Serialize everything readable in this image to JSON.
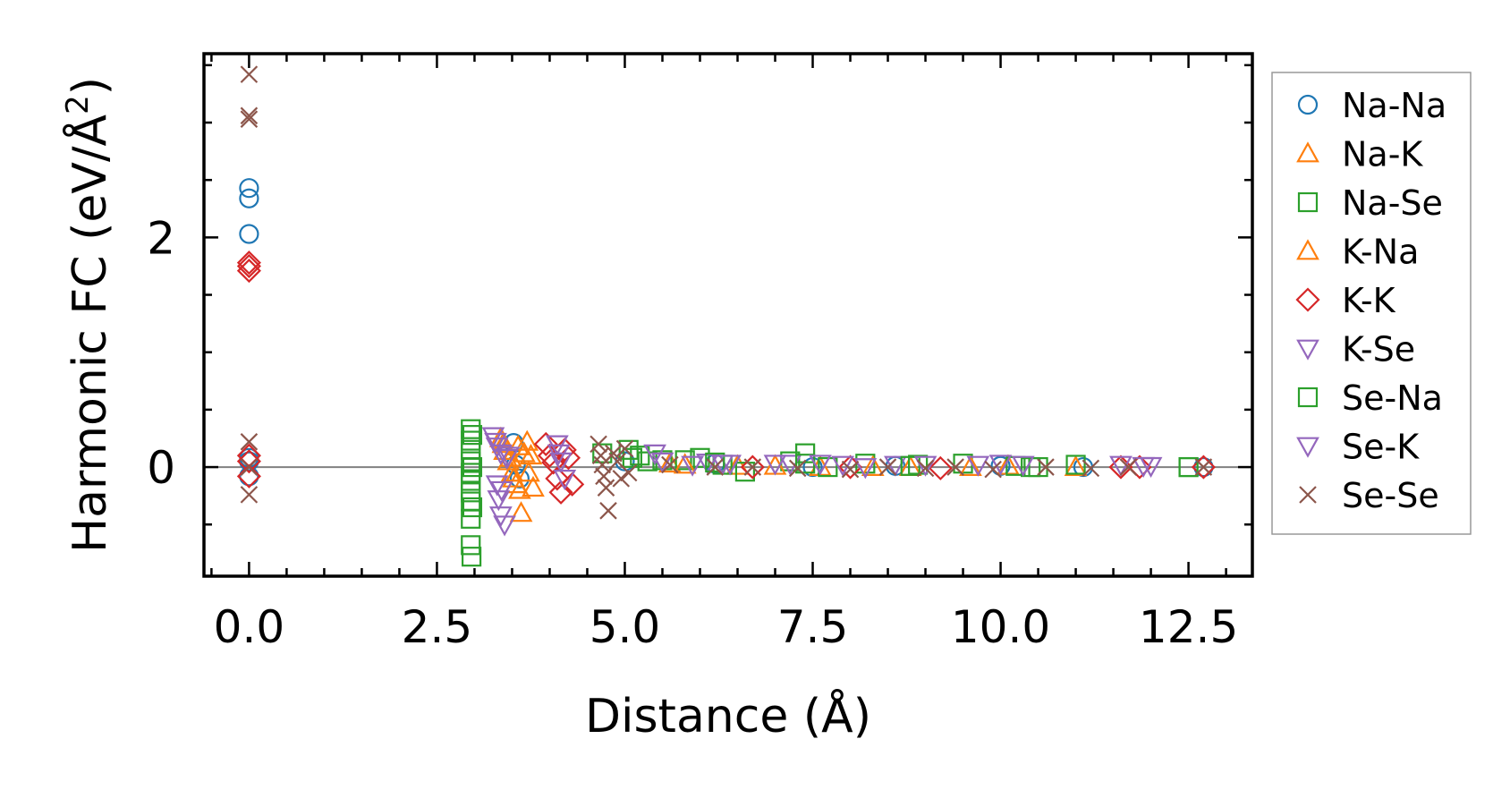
{
  "chart_data": {
    "type": "scatter",
    "xlabel": "Distance (Å)",
    "ylabel_main": "Harmonic FC (eV/Å",
    "ylabel_sup": "2",
    "ylabel_close": ")",
    "xlim": [
      -0.6,
      13.35
    ],
    "ylim": [
      -0.95,
      3.6
    ],
    "x_ticks": [
      0.0,
      2.5,
      5.0,
      7.5,
      10.0,
      12.5
    ],
    "x_tick_labels": [
      "0.0",
      "2.5",
      "5.0",
      "7.5",
      "10.0",
      "12.5"
    ],
    "y_ticks": [
      0,
      2
    ],
    "y_tick_labels": [
      "0",
      "2"
    ],
    "zero_line": true,
    "grid": false,
    "legend_position": "outside-right",
    "series": [
      {
        "name": "Na-Na",
        "marker": "circle",
        "color": "#1f77b4",
        "points": [
          [
            0,
            2.43
          ],
          [
            0,
            2.34
          ],
          [
            0,
            2.03
          ],
          [
            0,
            0.08
          ],
          [
            0,
            0.05
          ],
          [
            0,
            -0.08
          ],
          [
            3.52,
            0.21
          ],
          [
            3.55,
            0.02
          ],
          [
            3.6,
            -0.1
          ],
          [
            5.0,
            0.05
          ],
          [
            6.2,
            0.03
          ],
          [
            7.5,
            0.0
          ],
          [
            8.6,
            0.01
          ],
          [
            10.0,
            0.01
          ],
          [
            11.1,
            0.0
          ],
          [
            12.7,
            0.0
          ]
        ]
      },
      {
        "name": "Na-K",
        "marker": "triangle-up",
        "color": "#ff7f0e",
        "points": [
          [
            3.35,
            0.25
          ],
          [
            3.4,
            0.14
          ],
          [
            3.45,
            0.05
          ],
          [
            3.5,
            -0.05
          ],
          [
            3.55,
            -0.15
          ],
          [
            3.6,
            -0.2
          ],
          [
            3.62,
            -0.4
          ],
          [
            3.7,
            0.22
          ],
          [
            3.75,
            0.1
          ],
          [
            3.78,
            -0.18
          ],
          [
            5.6,
            0.03
          ],
          [
            6.5,
            0.01
          ],
          [
            7.6,
            0.0
          ],
          [
            8.8,
            0.0
          ],
          [
            10.1,
            0.01
          ],
          [
            11.0,
            0.0
          ]
        ]
      },
      {
        "name": "Na-Se",
        "marker": "square",
        "color": "#2ca02c",
        "points": [
          [
            2.95,
            0.33
          ],
          [
            2.95,
            0.23
          ],
          [
            2.95,
            0.15
          ],
          [
            2.95,
            0.05
          ],
          [
            2.95,
            -0.05
          ],
          [
            2.95,
            -0.12
          ],
          [
            2.95,
            -0.22
          ],
          [
            2.95,
            -0.3
          ],
          [
            2.95,
            -0.45
          ],
          [
            2.95,
            -0.68
          ],
          [
            2.96,
            -0.78
          ],
          [
            4.7,
            0.12
          ],
          [
            5.05,
            0.15
          ],
          [
            5.2,
            0.1
          ],
          [
            5.3,
            0.05
          ],
          [
            5.5,
            0.06
          ],
          [
            5.8,
            0.06
          ],
          [
            6.0,
            0.08
          ],
          [
            6.3,
            0.02
          ],
          [
            6.6,
            -0.04
          ],
          [
            7.2,
            0.05
          ],
          [
            7.4,
            0.12
          ],
          [
            7.7,
            0.0
          ],
          [
            8.2,
            0.03
          ],
          [
            8.9,
            0.02
          ],
          [
            9.5,
            0.03
          ],
          [
            10.2,
            0.01
          ],
          [
            10.5,
            0.0
          ],
          [
            11.0,
            0.02
          ],
          [
            12.5,
            0.0
          ]
        ]
      },
      {
        "name": "K-Na",
        "marker": "triangle-up",
        "color": "#ff7f0e",
        "points": [
          [
            3.38,
            0.2
          ],
          [
            3.48,
            0.08
          ],
          [
            3.52,
            -0.1
          ],
          [
            3.58,
            0.18
          ],
          [
            3.66,
            0.12
          ],
          [
            3.72,
            -0.05
          ],
          [
            5.8,
            0.02
          ],
          [
            7.0,
            0.01
          ],
          [
            8.3,
            0.0
          ],
          [
            9.6,
            0.0
          ]
        ]
      },
      {
        "name": "K-K",
        "marker": "diamond",
        "color": "#d62728",
        "points": [
          [
            0,
            1.78
          ],
          [
            0,
            1.75
          ],
          [
            0,
            1.71
          ],
          [
            0,
            0.1
          ],
          [
            0,
            0.05
          ],
          [
            0,
            -0.08
          ],
          [
            3.95,
            0.2
          ],
          [
            4.0,
            0.1
          ],
          [
            4.05,
            0.04
          ],
          [
            4.1,
            -0.1
          ],
          [
            4.15,
            -0.22
          ],
          [
            4.2,
            0.15
          ],
          [
            4.25,
            0.08
          ],
          [
            4.3,
            -0.15
          ],
          [
            6.7,
            0.0
          ],
          [
            8.0,
            0.0
          ],
          [
            9.2,
            -0.01
          ],
          [
            11.6,
            0.0
          ],
          [
            11.85,
            0.0
          ],
          [
            12.7,
            0.0
          ]
        ]
      },
      {
        "name": "K-Se",
        "marker": "triangle-down",
        "color": "#9467bd",
        "points": [
          [
            3.25,
            0.27
          ],
          [
            3.3,
            0.18
          ],
          [
            3.35,
            0.12
          ],
          [
            3.3,
            -0.15
          ],
          [
            3.32,
            -0.28
          ],
          [
            3.35,
            -0.42
          ],
          [
            3.4,
            -0.5
          ],
          [
            3.45,
            0.1
          ],
          [
            4.1,
            0.2
          ],
          [
            4.15,
            0.05
          ],
          [
            4.2,
            -0.1
          ],
          [
            5.4,
            0.12
          ],
          [
            5.9,
            0.02
          ],
          [
            6.1,
            0.04
          ],
          [
            6.4,
            0.03
          ],
          [
            7.2,
            0.03
          ],
          [
            7.9,
            0.02
          ],
          [
            8.6,
            0.02
          ],
          [
            9.7,
            0.02
          ],
          [
            10.0,
            0.03
          ],
          [
            11.6,
            0.02
          ],
          [
            12.0,
            0.01
          ]
        ]
      },
      {
        "name": "Se-Na",
        "marker": "square",
        "color": "#2ca02c",
        "points": [
          [
            2.97,
            0.28
          ],
          [
            2.97,
            0.0
          ],
          [
            2.97,
            -0.35
          ],
          [
            5.1,
            0.08
          ],
          [
            6.2,
            0.04
          ],
          [
            7.4,
            0.03
          ],
          [
            8.8,
            0.01
          ],
          [
            10.4,
            0.0
          ],
          [
            12.5,
            0.0
          ]
        ]
      },
      {
        "name": "Se-K",
        "marker": "triangle-down",
        "color": "#9467bd",
        "points": [
          [
            3.28,
            0.22
          ],
          [
            3.36,
            -0.2
          ],
          [
            3.43,
            0.08
          ],
          [
            4.12,
            0.12
          ],
          [
            5.5,
            0.05
          ],
          [
            6.3,
            0.03
          ],
          [
            7.0,
            0.03
          ],
          [
            7.6,
            0.03
          ],
          [
            8.2,
            0.0
          ],
          [
            9.0,
            0.02
          ],
          [
            10.3,
            0.02
          ],
          [
            11.9,
            0.01
          ]
        ]
      },
      {
        "name": "Se-Se",
        "marker": "x",
        "color": "#8c564b",
        "points": [
          [
            0,
            3.42
          ],
          [
            0,
            3.06
          ],
          [
            0,
            3.03
          ],
          [
            0,
            0.22
          ],
          [
            0,
            0.0
          ],
          [
            0,
            -0.24
          ],
          [
            4.65,
            0.2
          ],
          [
            4.68,
            0.1
          ],
          [
            4.7,
            0.02
          ],
          [
            4.72,
            -0.08
          ],
          [
            4.75,
            -0.18
          ],
          [
            4.78,
            -0.38
          ],
          [
            4.85,
            0.12
          ],
          [
            4.9,
            0.05
          ],
          [
            4.95,
            -0.1
          ],
          [
            5.0,
            0.16
          ],
          [
            5.05,
            -0.05
          ],
          [
            5.6,
            0.02
          ],
          [
            6.2,
            0.0
          ],
          [
            6.7,
            0.0
          ],
          [
            7.3,
            -0.01
          ],
          [
            8.0,
            -0.02
          ],
          [
            8.5,
            0.0
          ],
          [
            9.0,
            -0.01
          ],
          [
            9.4,
            0.0
          ],
          [
            9.9,
            -0.02
          ],
          [
            10.6,
            0.0
          ],
          [
            11.2,
            -0.01
          ],
          [
            11.7,
            0.0
          ],
          [
            12.7,
            0.0
          ]
        ]
      }
    ]
  }
}
